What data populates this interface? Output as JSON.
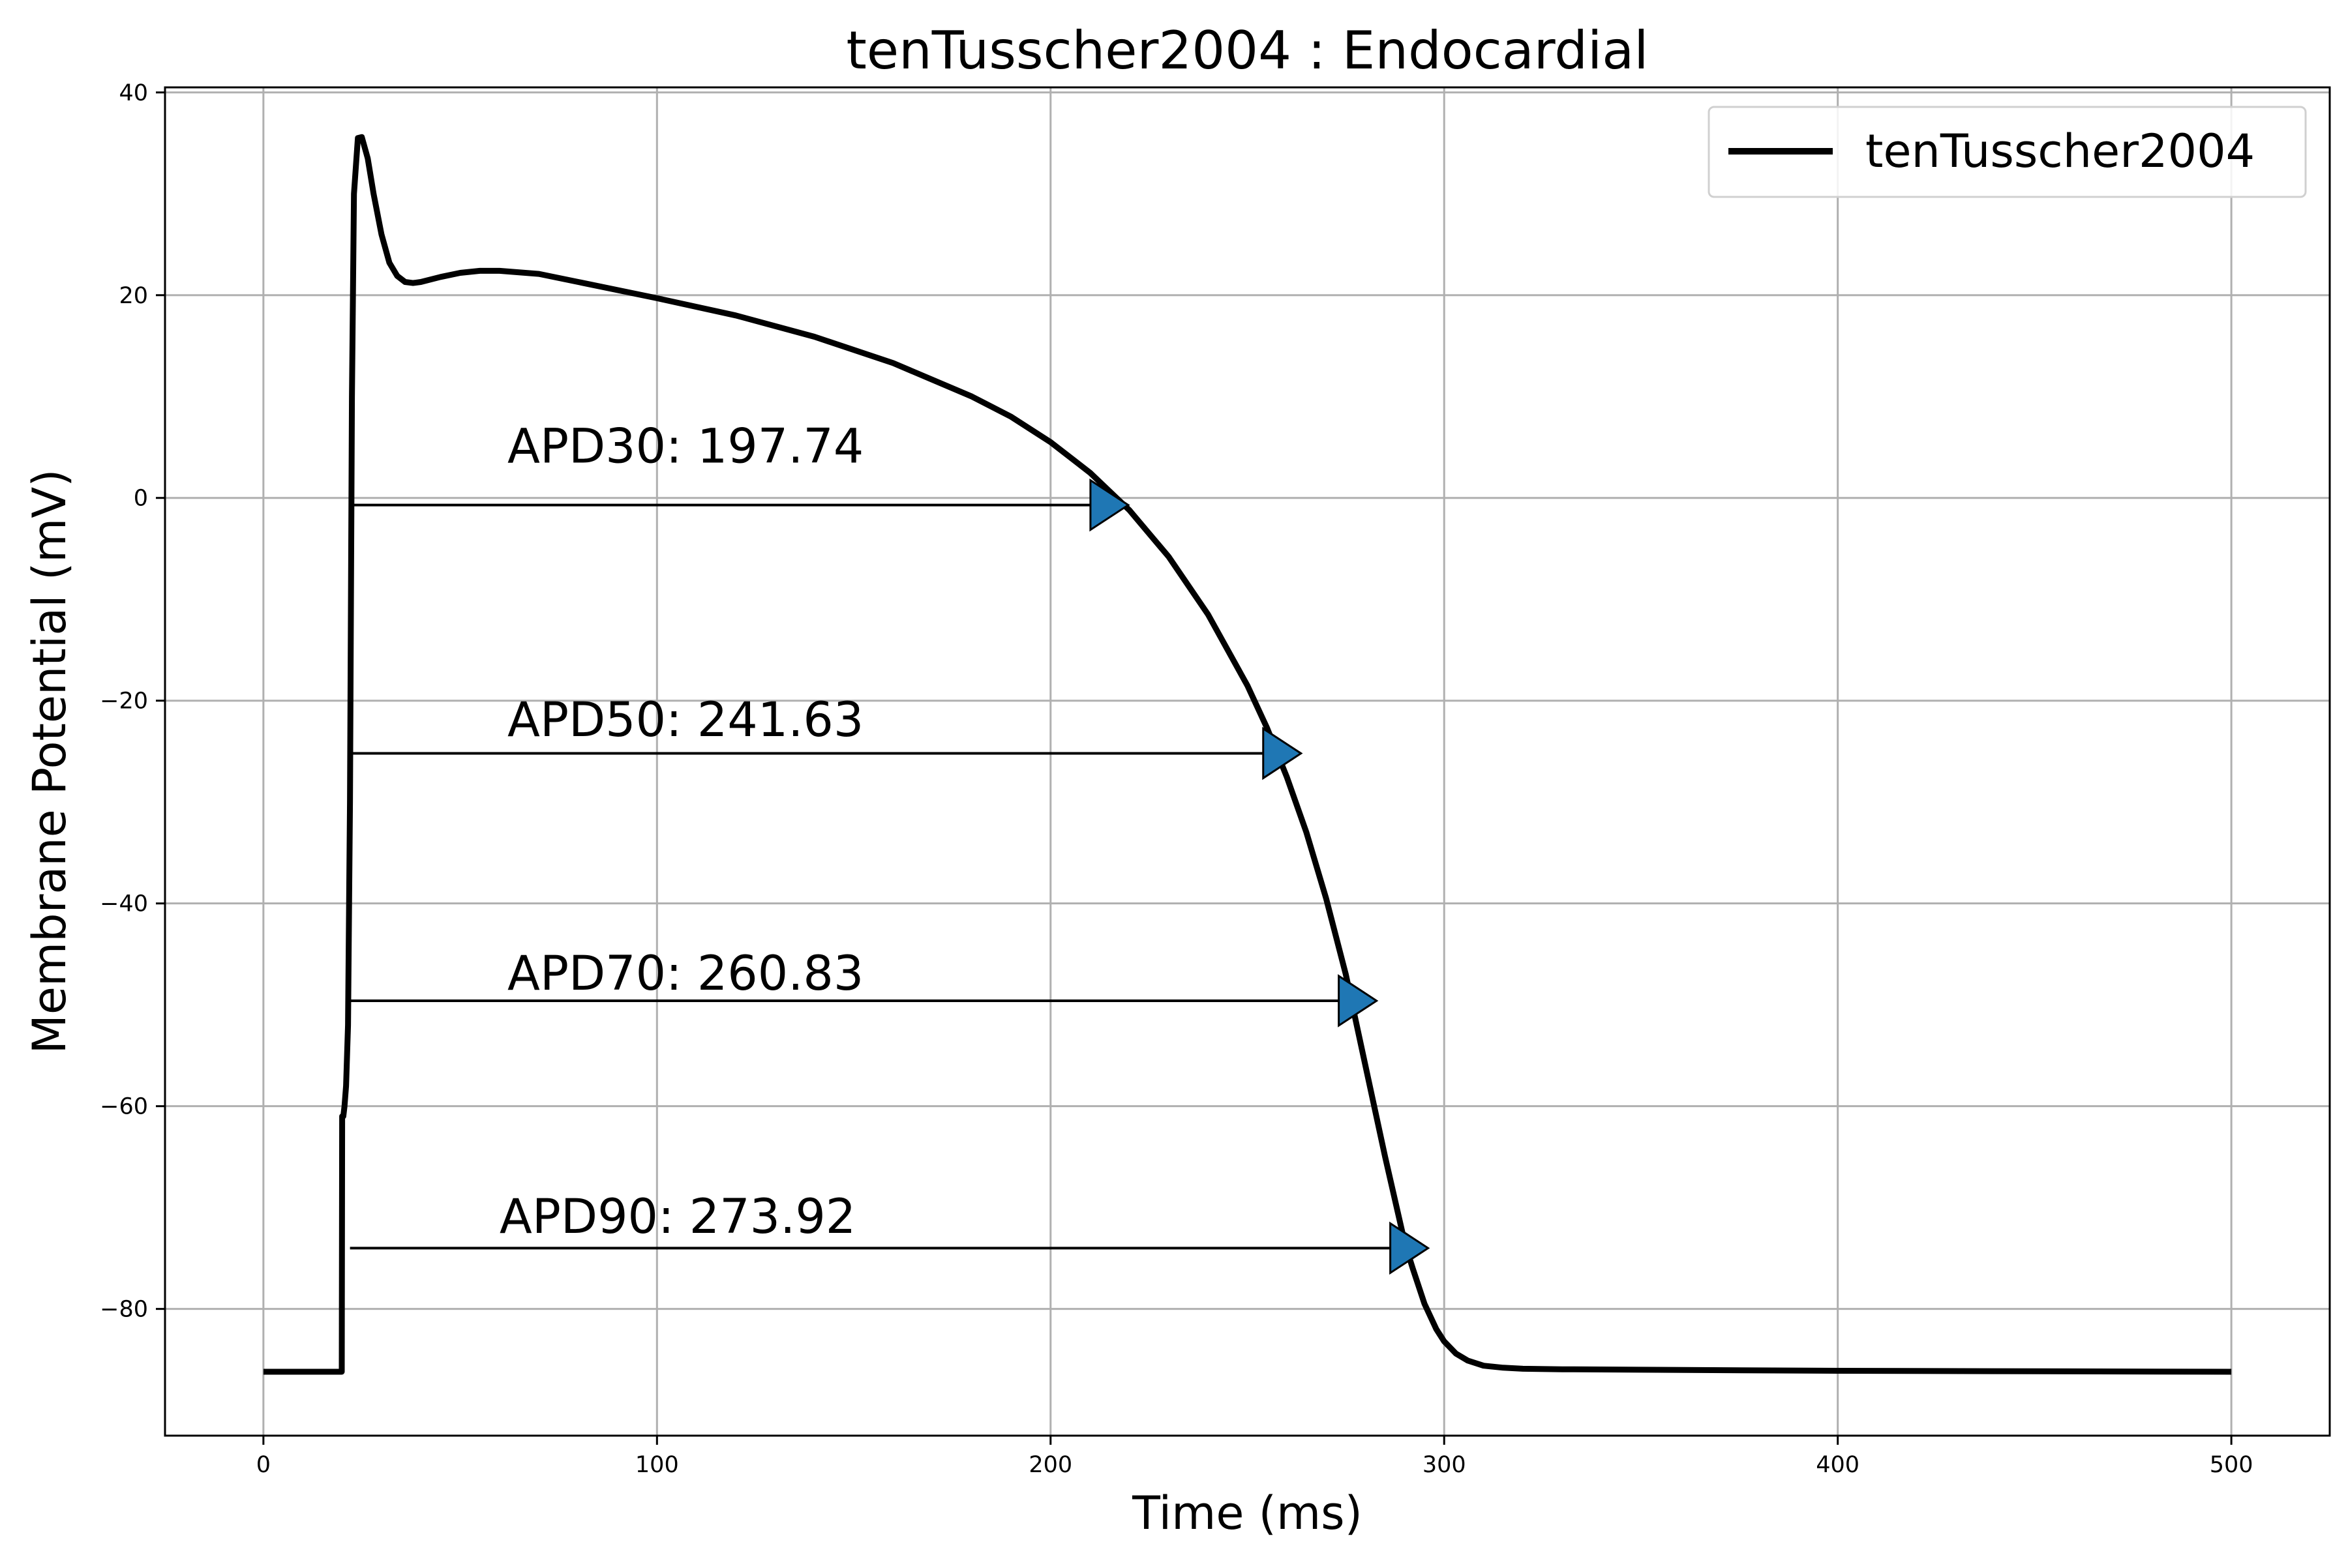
{
  "chart_data": {
    "type": "line",
    "title": "tenTusscher2004 : Endocardial",
    "xlabel": "Time (ms)",
    "ylabel": "Membrane Potential (mV)",
    "xlim": [
      -25,
      525
    ],
    "ylim": [
      -92.5,
      40.5
    ],
    "xticks": [
      0,
      100,
      200,
      300,
      400,
      500
    ],
    "xtick_labels": [
      "0",
      "100",
      "200",
      "300",
      "400",
      "500"
    ],
    "yticks": [
      -80,
      -60,
      -40,
      -20,
      0,
      20,
      40
    ],
    "ytick_labels": [
      "−80",
      "−60",
      "−40",
      "−20",
      "0",
      "20",
      "40"
    ],
    "grid": true,
    "legend_position": "top-right",
    "colors": {
      "trace": "#000000",
      "marker": "#1f77b4",
      "grid": "#b0b0b0"
    },
    "series": [
      {
        "name": "tenTusscher2004",
        "x": [
          0,
          19.9,
          20,
          20.3,
          20.6,
          21,
          21.5,
          22,
          22.5,
          23,
          24,
          25,
          26.5,
          28,
          30,
          32,
          34,
          36,
          38,
          40,
          45,
          50,
          55,
          60,
          70,
          80,
          100,
          120,
          140,
          160,
          180,
          190,
          200,
          210,
          220,
          230,
          240,
          250,
          255,
          260,
          265,
          270,
          275,
          280,
          285,
          290,
          292,
          295,
          298,
          300,
          303,
          306,
          310,
          315,
          320,
          330,
          350,
          400,
          450,
          500
        ],
        "y": [
          -86.2,
          -86.2,
          -61,
          -61,
          -60,
          -58,
          -52,
          -30,
          10,
          30,
          35.5,
          35.6,
          33.5,
          30,
          26,
          23.2,
          21.9,
          21.3,
          21.2,
          21.3,
          21.8,
          22.2,
          22.4,
          22.4,
          22.1,
          21.3,
          19.7,
          18,
          15.9,
          13.3,
          10,
          8,
          5.5,
          2.5,
          -1.2,
          -5.8,
          -11.5,
          -18.5,
          -22.7,
          -27.5,
          -33,
          -39.5,
          -47,
          -56,
          -65,
          -73.5,
          -76,
          -79.5,
          -82,
          -83.2,
          -84.4,
          -85.1,
          -85.6,
          -85.8,
          -85.9,
          -85.95,
          -86,
          -86.1,
          -86.15,
          -86.2
        ]
      }
    ],
    "apd_annotations": [
      {
        "label": "APD30: 197.74",
        "start": 22,
        "end": 219.74,
        "level": -0.7,
        "text_x": 62,
        "text_y": 3.5
      },
      {
        "label": "APD50: 241.63",
        "start": 22,
        "end": 263.63,
        "level": -25.2,
        "text_x": 62,
        "text_y": -23.5
      },
      {
        "label": "APD70: 260.83",
        "start": 22,
        "end": 282.83,
        "level": -49.6,
        "text_x": 62,
        "text_y": -48.5
      },
      {
        "label": "APD90: 273.92",
        "start": 22,
        "end": 295.92,
        "level": -74,
        "text_x": 60,
        "text_y": -72.5
      }
    ]
  }
}
